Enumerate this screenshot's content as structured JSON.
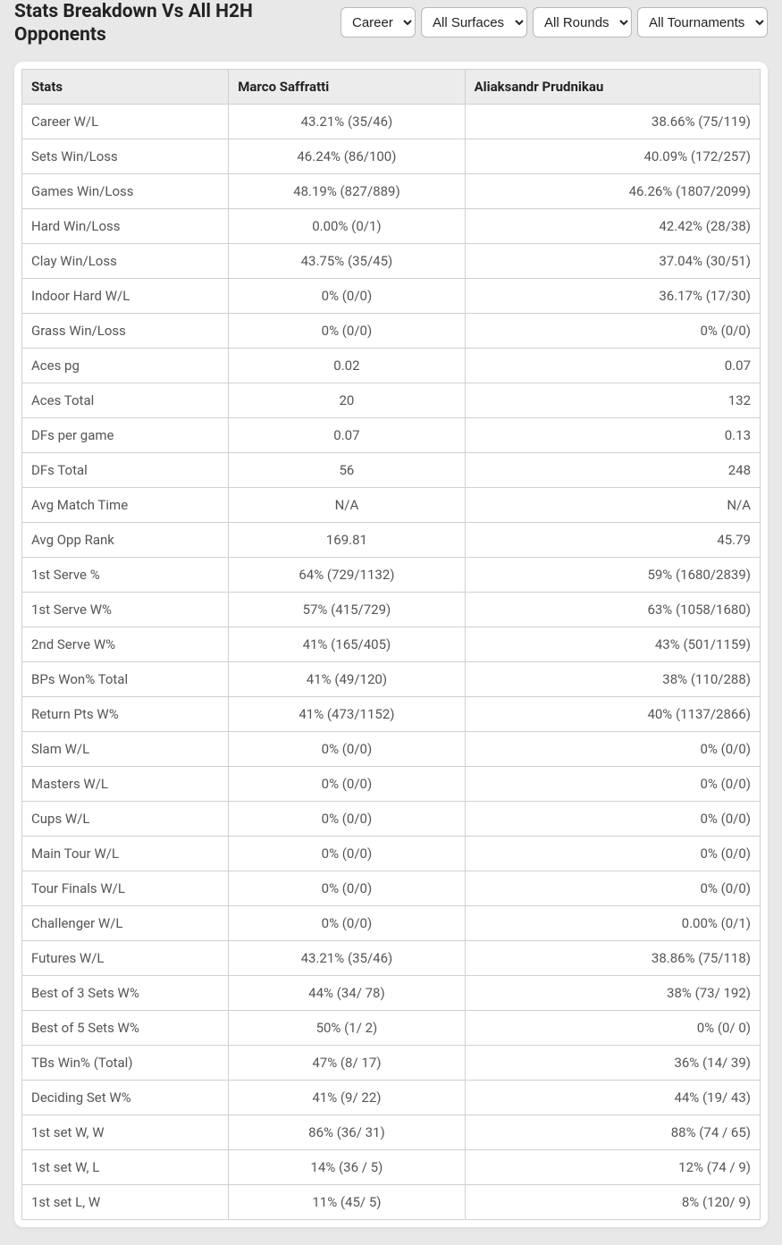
{
  "title": "Stats Breakdown Vs All H2H Opponents",
  "filters": {
    "period": {
      "options": [
        "Career"
      ],
      "selected": "Career"
    },
    "surface": {
      "options": [
        "All Surfaces"
      ],
      "selected": "All Surfaces"
    },
    "rounds": {
      "options": [
        "All Rounds"
      ],
      "selected": "All Rounds"
    },
    "tournament": {
      "options": [
        "All Tournaments"
      ],
      "selected": "All Tournaments"
    }
  },
  "table": {
    "columns": [
      "Stats",
      "Marco Saffratti",
      "Aliaksandr Prudnikau"
    ],
    "rows": [
      {
        "stat": "Career W/L",
        "p1": "43.21% (35/46)",
        "p2": "38.66% (75/119)"
      },
      {
        "stat": "Sets Win/Loss",
        "p1": "46.24% (86/100)",
        "p2": "40.09% (172/257)"
      },
      {
        "stat": "Games Win/Loss",
        "p1": "48.19% (827/889)",
        "p2": "46.26% (1807/2099)"
      },
      {
        "stat": "Hard Win/Loss",
        "p1": "0.00% (0/1)",
        "p2": "42.42% (28/38)"
      },
      {
        "stat": "Clay Win/Loss",
        "p1": "43.75% (35/45)",
        "p2": "37.04% (30/51)"
      },
      {
        "stat": "Indoor Hard W/L",
        "p1": "0% (0/0)",
        "p2": "36.17% (17/30)"
      },
      {
        "stat": "Grass Win/Loss",
        "p1": "0% (0/0)",
        "p2": "0% (0/0)"
      },
      {
        "stat": "Aces pg",
        "p1": "0.02",
        "p2": "0.07"
      },
      {
        "stat": "Aces Total",
        "p1": "20",
        "p2": "132"
      },
      {
        "stat": "DFs per game",
        "p1": "0.07",
        "p2": "0.13"
      },
      {
        "stat": "DFs Total",
        "p1": "56",
        "p2": "248"
      },
      {
        "stat": "Avg Match Time",
        "p1": "N/A",
        "p2": "N/A"
      },
      {
        "stat": "Avg Opp Rank",
        "p1": "169.81",
        "p2": "45.79"
      },
      {
        "stat": "1st Serve %",
        "p1": "64% (729/1132)",
        "p2": "59% (1680/2839)"
      },
      {
        "stat": "1st Serve W%",
        "p1": "57% (415/729)",
        "p2": "63% (1058/1680)"
      },
      {
        "stat": "2nd Serve W%",
        "p1": "41% (165/405)",
        "p2": "43% (501/1159)"
      },
      {
        "stat": "BPs Won% Total",
        "p1": "41% (49/120)",
        "p2": "38% (110/288)"
      },
      {
        "stat": "Return Pts W%",
        "p1": "41% (473/1152)",
        "p2": "40% (1137/2866)"
      },
      {
        "stat": "Slam W/L",
        "p1": "0% (0/0)",
        "p2": "0% (0/0)"
      },
      {
        "stat": "Masters W/L",
        "p1": "0% (0/0)",
        "p2": "0% (0/0)"
      },
      {
        "stat": "Cups W/L",
        "p1": "0% (0/0)",
        "p2": "0% (0/0)"
      },
      {
        "stat": "Main Tour W/L",
        "p1": "0% (0/0)",
        "p2": "0% (0/0)"
      },
      {
        "stat": "Tour Finals W/L",
        "p1": "0% (0/0)",
        "p2": "0% (0/0)"
      },
      {
        "stat": "Challenger W/L",
        "p1": "0% (0/0)",
        "p2": "0.00% (0/1)"
      },
      {
        "stat": "Futures W/L",
        "p1": "43.21% (35/46)",
        "p2": "38.86% (75/118)"
      },
      {
        "stat": "Best of 3 Sets W%",
        "p1": "44% (34/ 78)",
        "p2": "38% (73/ 192)"
      },
      {
        "stat": "Best of 5 Sets W%",
        "p1": "50% (1/ 2)",
        "p2": "0% (0/ 0)"
      },
      {
        "stat": "TBs Win% (Total)",
        "p1": "47% (8/ 17)",
        "p2": "36% (14/ 39)"
      },
      {
        "stat": "Deciding Set W%",
        "p1": "41% (9/ 22)",
        "p2": "44% (19/ 43)"
      },
      {
        "stat": "1st set W, W",
        "p1": "86% (36/ 31)",
        "p2": "88% (74 / 65)"
      },
      {
        "stat": "1st set W, L",
        "p1": "14% (36 / 5)",
        "p2": "12% (74 / 9)"
      },
      {
        "stat": "1st set L, W",
        "p1": "11% (45/ 5)",
        "p2": "8% (120/ 9)"
      }
    ]
  },
  "styling": {
    "page_bg": "#e8e8e8",
    "card_bg": "#ffffff",
    "header_bg": "#ececec",
    "border_color": "#d0d0d0",
    "title_fontsize": 21,
    "cell_fontsize": 15,
    "title_color": "#222222",
    "cell_text_color": "#555555"
  }
}
